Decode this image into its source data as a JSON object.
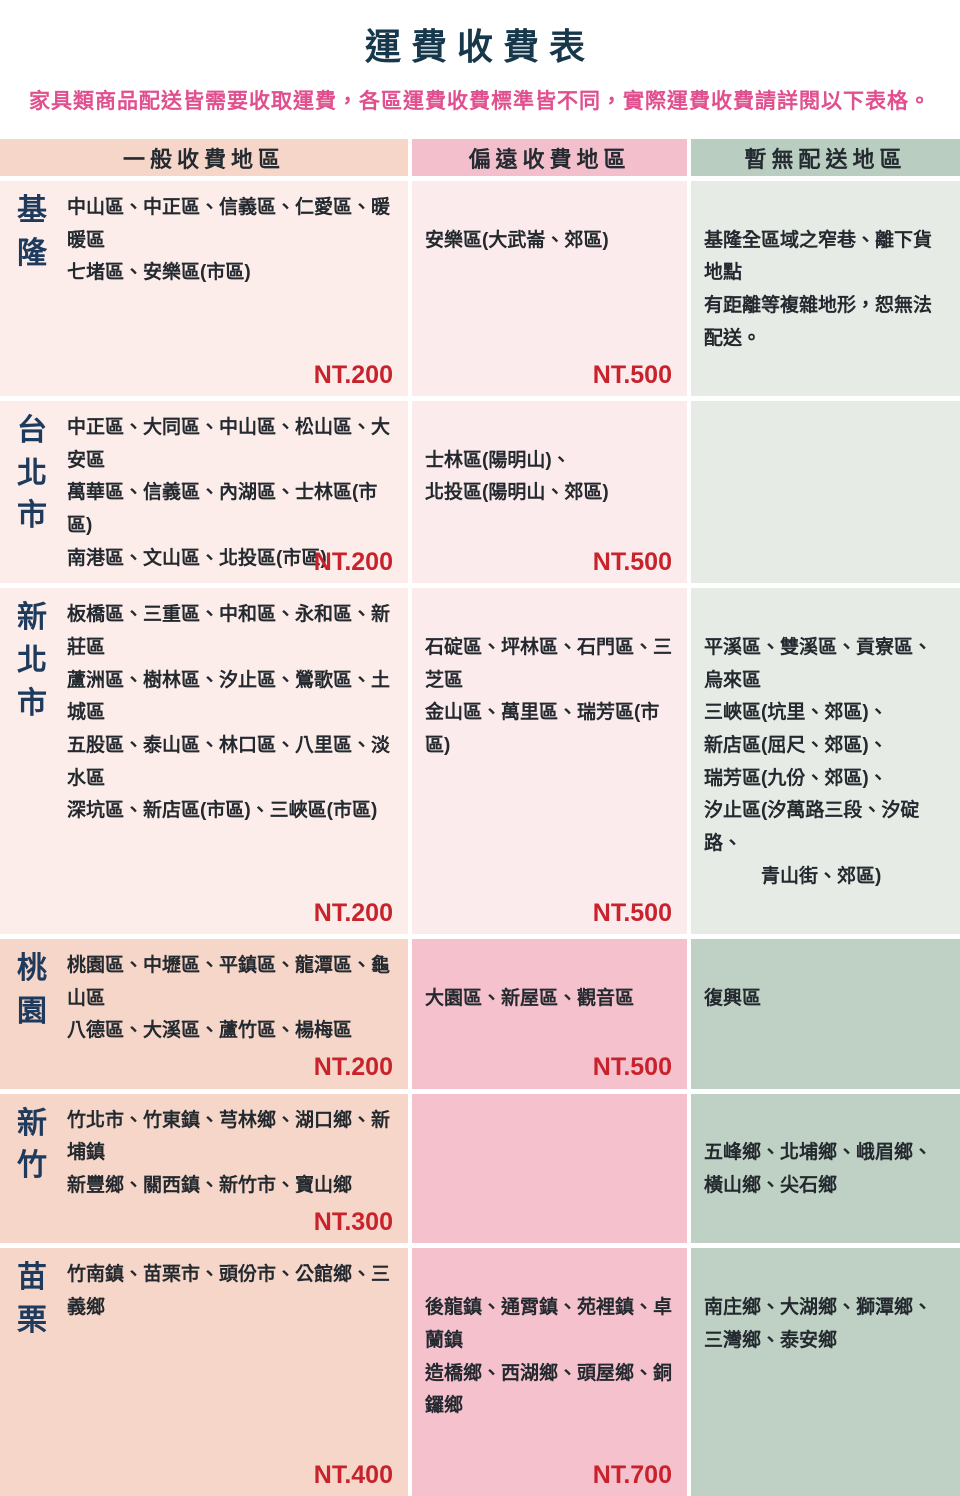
{
  "header": {
    "title": "運費收費表",
    "subtitle": "家具類商品配送皆需要收取運費，各區運費收費標準皆不同，實際運費收費請詳閱以下表格。"
  },
  "palette": {
    "title_color": "#17374a",
    "subtitle_color": "#e0508f",
    "price_color": "#c8232c",
    "region_label_color": "#1e3a5c",
    "header_general_bg": "#f6d6c8",
    "header_remote_bg": "#f4bfcc",
    "header_none_bg": "#b9cec1",
    "light_general_bg": "#fcedea",
    "light_remote_bg": "#fcebec",
    "light_none_bg": "#e6ebe6"
  },
  "columns": {
    "general": "一般收費地區",
    "remote": "偏遠收費地區",
    "none": "暫無配送地區"
  },
  "rows": [
    {
      "region": "基隆",
      "general": {
        "areas": "中山區、中正區、信義區、仁愛區、暖暖區\n七堵區、安樂區(市區)",
        "price": "NT.200"
      },
      "remote": {
        "areas": "安樂區(大武崙、郊區)",
        "price": "NT.500"
      },
      "none": {
        "areas": "基隆全區域之窄巷、離下貨地點\n有距離等複雜地形，恕無法配送。"
      }
    },
    {
      "region": "台北市",
      "general": {
        "areas": "中正區、大同區、中山區、松山區、大安區\n萬華區、信義區、內湖區、士林區(市區)\n南港區、文山區、北投區(市區)",
        "price": "NT.200"
      },
      "remote": {
        "areas": "士林區(陽明山)、\n北投區(陽明山、郊區)",
        "price": "NT.500"
      },
      "none": {
        "areas": ""
      }
    },
    {
      "region": "新北市",
      "general": {
        "areas": "板橋區、三重區、中和區、永和區、新莊區\n蘆洲區、樹林區、汐止區、鶯歌區、土城區\n五股區、泰山區、林口區、八里區、淡水區\n深坑區、新店區(市區)、三峽區(市區)",
        "price": "NT.200"
      },
      "remote": {
        "areas": "石碇區、坪林區、石門區、三芝區\n金山區、萬里區、瑞芳區(市區)",
        "price": "NT.500"
      },
      "none": {
        "areas": "平溪區、雙溪區、貢寮區、烏來區\n三峽區(坑里、郊區)、\n新店區(屈尺、郊區)、\n瑞芳區(九份、郊區)、\n汐止區(汐萬路三段、汐碇路、\n　　　青山街、郊區)"
      }
    },
    {
      "region": "桃園",
      "general": {
        "areas": "桃園區、中壢區、平鎮區、龍潭區、龜山區\n八德區、大溪區、蘆竹區、楊梅區",
        "price": "NT.200"
      },
      "remote": {
        "areas": "大園區、新屋區、觀音區",
        "price": "NT.500"
      },
      "none": {
        "areas": "復興區"
      }
    },
    {
      "region": "新竹",
      "general": {
        "areas": "竹北市、竹東鎮、芎林鄉、湖口鄉、新埔鎮\n新豐鄉、關西鎮、新竹市、寶山鄉",
        "price": "NT.300"
      },
      "remote": {
        "areas": "",
        "price": ""
      },
      "none": {
        "areas": "五峰鄉、北埔鄉、峨眉鄉、\n橫山鄉、尖石鄉"
      }
    },
    {
      "region": "苗栗",
      "general": {
        "areas": "竹南鎮、苗栗市、頭份市、公館鄉、三義鄉",
        "price": "NT.400"
      },
      "remote": {
        "areas": "後龍鎮、通霄鎮、苑裡鎮、卓蘭鎮\n造橋鄉、西湖鄉、頭屋鄉、銅鑼鄉",
        "price": "NT.700"
      },
      "none": {
        "areas": "南庄鄉、大湖鄉、獅潭鄉、\n三灣鄉、泰安鄉"
      }
    }
  ]
}
